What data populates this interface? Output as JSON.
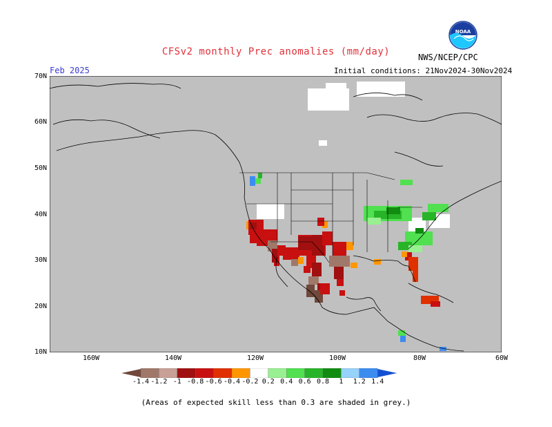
{
  "header": {
    "title": "CFSv2 monthly Prec anomalies (mm/day)",
    "agency": "NWS/NCEP/CPC",
    "month": "Feb 2025",
    "initial_conditions": "Initial conditions: 21Nov2024-30Nov2024",
    "logo_text": "NOAA"
  },
  "axes": {
    "lat_labels": [
      "70N",
      "60N",
      "50N",
      "40N",
      "30N",
      "20N",
      "10N"
    ],
    "lon_labels": [
      "160W",
      "140W",
      "120W",
      "100W",
      "80W",
      "60W"
    ]
  },
  "colorbar": {
    "labels": [
      "-1.4",
      "-1.2",
      "-1",
      "-0.8",
      "-0.6",
      "-0.4",
      "-0.2",
      "0.2",
      "0.4",
      "0.6",
      "0.8",
      "1",
      "1.2",
      "1.4"
    ],
    "colors": [
      "#70483c",
      "#a0786a",
      "#c8a096",
      "#a01010",
      "#c81010",
      "#e03000",
      "#ff9600",
      "#ffffff",
      "#98f090",
      "#50e050",
      "#28b428",
      "#108c10",
      "#96d2fa",
      "#3c8cf0",
      "#1450d2"
    ]
  },
  "footer": {
    "note": "(Areas of expected skill less than 0.3 are shaded in grey.)"
  },
  "chart_data": {
    "type": "heatmap",
    "title": "CFSv2 monthly Prec anomalies (mm/day)",
    "lat_range": [
      10,
      70
    ],
    "lon_range": [
      -170,
      -60
    ],
    "units": "mm/day",
    "grid": true
  }
}
